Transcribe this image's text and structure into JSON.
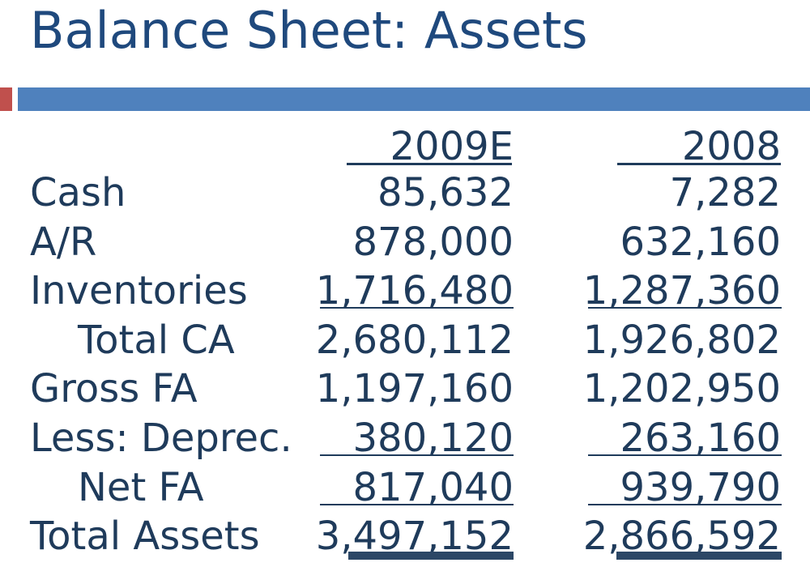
{
  "title": "Balance Sheet: Assets",
  "colors": {
    "title": "#1f497d",
    "text": "#1f3b5b",
    "accent_bar": "#4f81bd",
    "accent_block": "#c0504d"
  },
  "table": {
    "columns": [
      "2009E",
      "2008"
    ],
    "rows": [
      {
        "label": "Cash",
        "values": [
          "85,632",
          "7,282"
        ]
      },
      {
        "label": "A/R",
        "values": [
          "878,000",
          "632,160"
        ]
      },
      {
        "label": "Inventories",
        "values": [
          "1,716,480",
          "1,287,360"
        ]
      },
      {
        "label": "Total CA",
        "values": [
          "2,680,112",
          "1,926,802"
        ]
      },
      {
        "label": "Gross FA",
        "values": [
          "1,197,160",
          "1,202,950"
        ]
      },
      {
        "label": "Less: Deprec.",
        "values": [
          "380,120",
          "263,160"
        ]
      },
      {
        "label": "Net FA",
        "values": [
          "817,040",
          "939,790"
        ]
      },
      {
        "label": "Total Assets",
        "values": [
          "3,497,152",
          "2,866,592"
        ]
      }
    ]
  }
}
